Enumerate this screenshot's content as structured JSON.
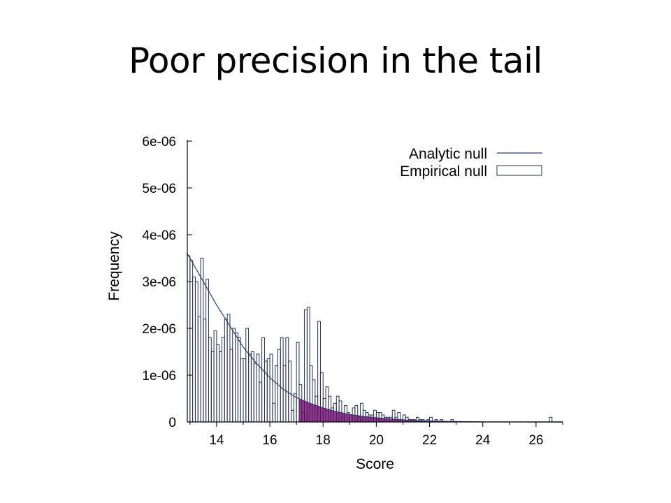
{
  "slide": {
    "title": "Poor precision in the tail"
  },
  "chart_data": {
    "type": "bar",
    "xlabel": "Score",
    "ylabel": "Frequency",
    "xlim": [
      12.9,
      27.0
    ],
    "ylim": [
      0,
      6e-06
    ],
    "x_ticks": [
      {
        "value": 14,
        "label": "14"
      },
      {
        "value": 16,
        "label": "16"
      },
      {
        "value": 18,
        "label": "18"
      },
      {
        "value": 20,
        "label": "20"
      },
      {
        "value": 22,
        "label": "22"
      },
      {
        "value": 24,
        "label": "24"
      },
      {
        "value": 26,
        "label": "26"
      }
    ],
    "y_ticks": [
      {
        "value": 0,
        "label": "0"
      },
      {
        "value": 1e-06,
        "label": "1e-06"
      },
      {
        "value": 2e-06,
        "label": "2e-06"
      },
      {
        "value": 3e-06,
        "label": "3e-06"
      },
      {
        "value": 4e-06,
        "label": "4e-06"
      },
      {
        "value": 5e-06,
        "label": "5e-06"
      },
      {
        "value": 6e-06,
        "label": "6e-06"
      }
    ],
    "legend": {
      "position": "top-right",
      "entries": [
        {
          "label": "Analytic null",
          "style": "line"
        },
        {
          "label": "Empirical null",
          "style": "box"
        }
      ]
    },
    "shaded_region": {
      "x_start": 17.1,
      "color": "#a0308c"
    },
    "colors": {
      "bars_edge": "#23305e",
      "curve": "#2a3a6a",
      "shade": "#a0308c"
    },
    "series": [
      {
        "name": "Empirical null",
        "type": "histogram",
        "bin_width": 0.1,
        "bin_start": 12.9,
        "values": [
          3.55e-06,
          3.45e-06,
          3.1e-06,
          3e-06,
          2.25e-06,
          3.5e-06,
          2.2e-06,
          3.05e-06,
          1.8e-06,
          1.5e-06,
          1.95e-06,
          1.65e-06,
          1.5e-06,
          1.8e-06,
          2.2e-06,
          2.3e-06,
          1.55e-06,
          2e-06,
          1.9e-06,
          1.8e-06,
          1.35e-06,
          1.35e-06,
          2e-06,
          1.45e-06,
          1.5e-06,
          1.25e-06,
          1.45e-06,
          8.5e-07,
          1.8e-06,
          1.3e-06,
          1.35e-06,
          1.45e-06,
          4e-07,
          1.2e-06,
          1.55e-06,
          1.8e-06,
          1.2e-06,
          1.8e-06,
          1.3e-06,
          2.5e-07,
          6e-07,
          1.7e-06,
          8e-07,
          2e-07,
          2.4e-06,
          2.45e-06,
          1.2e-06,
          9e-07,
          5.5e-07,
          2.15e-06,
          1.05e-06,
          5e-07,
          7.5e-07,
          5.5e-07,
          3e-07,
          4e-07,
          5.5e-07,
          4.5e-07,
          1e-07,
          3.5e-07,
          2e-07,
          1.5e-07,
          3e-07,
          3.5e-07,
          1e-07,
          4e-07,
          2.5e-07,
          2e-07,
          1.5e-07,
          1.5e-07,
          2.5e-07,
          2e-07,
          2e-07,
          1.5e-07,
          1e-07,
          1e-07,
          1e-07,
          2.5e-07,
          1e-07,
          2e-07,
          5e-08,
          1.5e-07,
          1e-07,
          5e-08,
          5e-08,
          5e-08,
          1e-07,
          5e-08,
          5e-08,
          0.0,
          5e-08,
          1e-07,
          0.0,
          5e-08,
          0.0,
          5e-08,
          0.0,
          0.0,
          0.0,
          5e-08,
          0.0,
          0.0,
          0.0,
          0.0,
          0.0,
          0.0,
          0.0,
          0.0,
          0.0,
          0.0,
          0.0,
          0.0,
          0.0,
          0.0,
          0.0,
          0.0,
          0.0,
          0.0,
          0.0,
          0.0,
          0.0,
          0.0,
          0.0,
          0.0,
          0.0,
          0.0,
          0.0,
          0.0,
          0.0,
          0.0,
          0.0,
          0.0,
          0.0,
          0.0,
          0.0,
          0.0,
          1e-07,
          0.0
        ]
      },
      {
        "name": "Analytic null",
        "type": "line",
        "x": [
          12.9,
          13.5,
          14.0,
          14.5,
          15.0,
          15.5,
          16.0,
          16.5,
          17.0,
          17.5,
          18.0,
          18.5,
          19.0,
          19.5,
          20.0,
          20.5,
          21.0,
          21.5,
          22.0,
          22.5,
          23.0,
          24.0,
          25.0,
          26.0,
          27.0
        ],
        "y": [
          3.6e-06,
          3e-06,
          2.5e-06,
          2.05e-06,
          1.6e-06,
          1.25e-06,
          9.5e-07,
          7e-07,
          5.2e-07,
          4e-07,
          3e-07,
          2.2e-07,
          1.6e-07,
          1.2e-07,
          9e-08,
          6.5e-08,
          4.5e-08,
          3e-08,
          2e-08,
          1.3e-08,
          8e-09,
          3e-09,
          1e-09,
          3e-10,
          1e-10
        ]
      }
    ]
  }
}
